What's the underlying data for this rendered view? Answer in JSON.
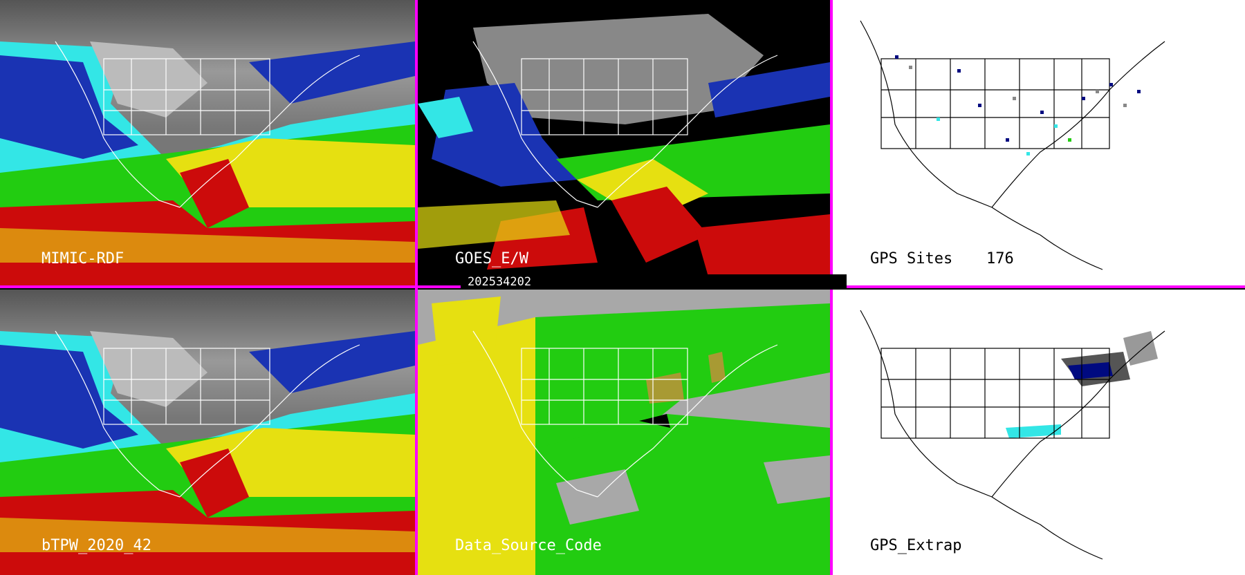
{
  "panels": {
    "mimic_rdf": {
      "label": "MIMIC-RDF"
    },
    "goes_ew": {
      "label": "GOES_E/W"
    },
    "gps_sites": {
      "label": "GPS Sites",
      "count": "176"
    },
    "btpw": {
      "label": "bTPW_2020_42"
    },
    "data_source_code": {
      "label": "Data_Source_Code"
    },
    "gps_extrap": {
      "label": "GPS_Extrap"
    }
  },
  "timestamp": "202534202",
  "colors": {
    "divider": "#ff00ff",
    "cyan": "#33e6e6",
    "blue": "#1a33b3",
    "navy": "#000a80",
    "green": "#22cc11",
    "yellow": "#e6e011",
    "red": "#cc0b0b",
    "grey": "#a8a8a8",
    "olive": "#a89a33"
  }
}
